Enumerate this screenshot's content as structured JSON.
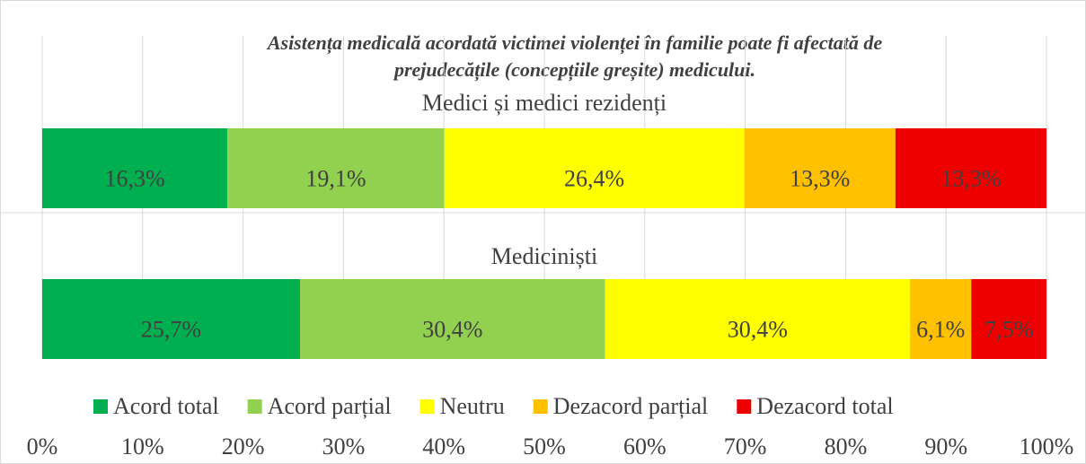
{
  "chart_data": {
    "type": "bar",
    "orientation": "horizontal",
    "stack": "percent",
    "title": [
      "Asistența medicală acordată victimei violenței în familie poate fi afectată de",
      "prejudecățile (concepțiile greșite) medicului."
    ],
    "categories": [
      "Medici și medici rezidenți",
      "Mediciniști"
    ],
    "series": [
      {
        "name": "Acord total",
        "color": "#00b050",
        "values": [
          16.3,
          25.7
        ],
        "value_labels": [
          "16,3%",
          "25,7%"
        ]
      },
      {
        "name": "Acord parțial",
        "color": "#92d050",
        "values": [
          19.1,
          30.4
        ],
        "value_labels": [
          "19,1%",
          "30,4%"
        ]
      },
      {
        "name": "Neutru",
        "color": "#ffff00",
        "values": [
          26.4,
          30.4
        ],
        "value_labels": [
          "26,4%",
          "30,4%"
        ]
      },
      {
        "name": "Dezacord parțial",
        "color": "#ffc000",
        "values": [
          13.3,
          6.1
        ],
        "value_labels": [
          "13,3%",
          "6,1%"
        ]
      },
      {
        "name": "Dezacord total",
        "color": "#ee0000",
        "values": [
          13.3,
          7.5
        ],
        "value_labels": [
          "13,3%",
          "7,5%"
        ]
      }
    ],
    "xlim": [
      0,
      100
    ],
    "xticks": [
      {
        "value": 0,
        "label": "0%"
      },
      {
        "value": 10,
        "label": "10%"
      },
      {
        "value": 20,
        "label": "20%"
      },
      {
        "value": 30,
        "label": "30%"
      },
      {
        "value": 40,
        "label": "40%"
      },
      {
        "value": 50,
        "label": "50%"
      },
      {
        "value": 60,
        "label": "60%"
      },
      {
        "value": 70,
        "label": "70%"
      },
      {
        "value": 80,
        "label": "80%"
      },
      {
        "value": 90,
        "label": "90%"
      },
      {
        "value": 100,
        "label": "100%"
      }
    ],
    "grid": true,
    "legend": "bottom"
  }
}
